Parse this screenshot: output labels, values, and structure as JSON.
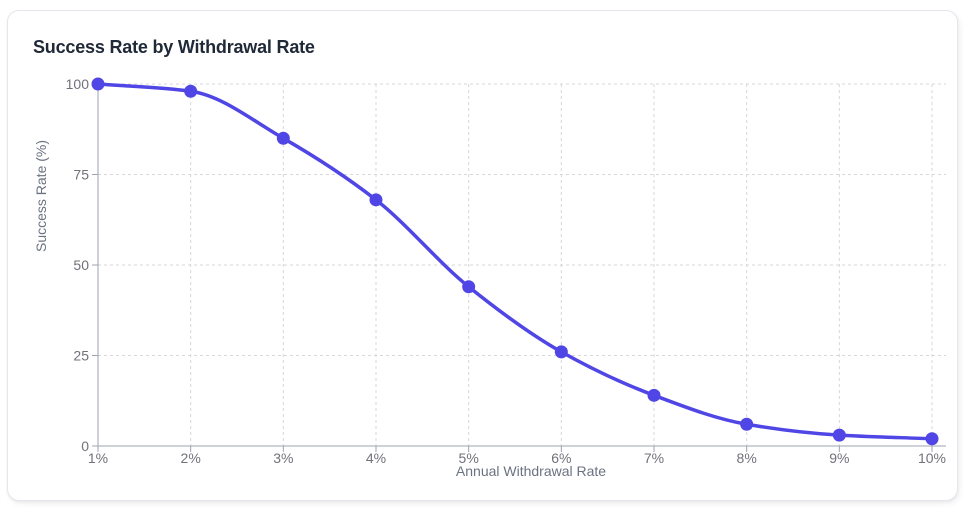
{
  "card": {
    "title": "Success Rate by Withdrawal Rate",
    "background": "#ffffff",
    "border_color": "#e5e6ee"
  },
  "chart_data": {
    "type": "line",
    "title": "Success Rate by Withdrawal Rate",
    "xlabel": "Annual Withdrawal Rate",
    "ylabel": "Success Rate (%)",
    "categories": [
      "1%",
      "2%",
      "3%",
      "4%",
      "5%",
      "6%",
      "7%",
      "8%",
      "9%",
      "10%"
    ],
    "values": [
      100,
      98,
      85,
      68,
      44,
      26,
      14,
      6,
      3,
      2
    ],
    "ylim": [
      0,
      100
    ],
    "yticks": [
      0,
      25,
      50,
      75,
      100
    ],
    "grid": "dashed",
    "legend": "none",
    "line_color": "#4f46e5",
    "point_color": "#4f46e5",
    "axis_color": "#9ca3af",
    "grid_color": "#d7d7dc",
    "tick_label_color": "#71717a",
    "axis_label_color": "#6b7280",
    "title_color": "#1f2937"
  }
}
